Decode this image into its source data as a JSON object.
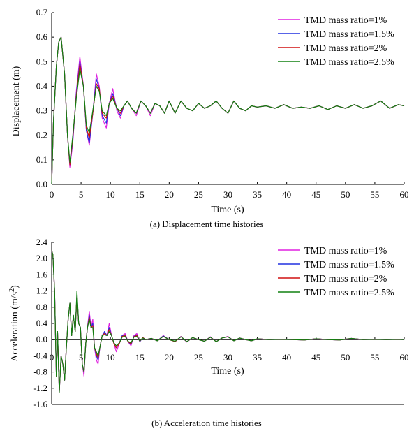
{
  "chart_data": [
    {
      "type": "line",
      "caption": "(a) Displacement time histories",
      "xlabel": "Time (s)",
      "ylabel": "Displacement (m)",
      "xlim": [
        0,
        60
      ],
      "ylim": [
        0,
        0.7
      ],
      "xticks": [
        "0",
        "5",
        "10",
        "15",
        "20",
        "25",
        "30",
        "35",
        "40",
        "45",
        "50",
        "55",
        "60"
      ],
      "yticks": [
        "0.0",
        "0.1",
        "0.2",
        "0.3",
        "0.4",
        "0.5",
        "0.6",
        "0.7"
      ],
      "legend_position": "top-right",
      "grid": false,
      "x": [
        0,
        0.3,
        0.8,
        1.2,
        1.6,
        2.2,
        2.7,
        3.1,
        3.6,
        4.2,
        4.8,
        5.4,
        5.9,
        6.4,
        7.0,
        7.6,
        8.1,
        8.6,
        9.3,
        9.8,
        10.4,
        11.1,
        11.7,
        12.3,
        12.9,
        13.6,
        14.4,
        15.2,
        16.0,
        16.8,
        17.6,
        18.4,
        19.2,
        20.0,
        21.0,
        22.0,
        23.0,
        24.0,
        25.0,
        26.0,
        27.0,
        28.0,
        29.0,
        30.0,
        31.0,
        32.0,
        33.0,
        34.0,
        35.0,
        36.5,
        38.0,
        39.5,
        41.0,
        42.5,
        44.0,
        45.5,
        47.0,
        48.5,
        50.0,
        51.5,
        53.0,
        54.5,
        56.0,
        57.5,
        59.0,
        60.0
      ],
      "series": [
        {
          "name": "TMD mass ratio=1%",
          "color": "#e020e0",
          "values": [
            0,
            0.25,
            0.48,
            0.58,
            0.6,
            0.45,
            0.2,
            0.07,
            0.17,
            0.38,
            0.52,
            0.4,
            0.22,
            0.16,
            0.29,
            0.45,
            0.4,
            0.27,
            0.23,
            0.33,
            0.39,
            0.3,
            0.27,
            0.32,
            0.34,
            0.31,
            0.28,
            0.34,
            0.32,
            0.28,
            0.33,
            0.32,
            0.29,
            0.34,
            0.29,
            0.34,
            0.31,
            0.3,
            0.33,
            0.31,
            0.32,
            0.34,
            0.31,
            0.29,
            0.34,
            0.31,
            0.3,
            0.32,
            0.315,
            0.32,
            0.31,
            0.325,
            0.31,
            0.315,
            0.31,
            0.32,
            0.305,
            0.32,
            0.31,
            0.325,
            0.31,
            0.32,
            0.34,
            0.31,
            0.325,
            0.32
          ]
        },
        {
          "name": "TMD mass ratio=1.5%",
          "color": "#2030e0",
          "values": [
            0,
            0.25,
            0.48,
            0.58,
            0.6,
            0.45,
            0.2,
            0.08,
            0.18,
            0.37,
            0.5,
            0.4,
            0.22,
            0.17,
            0.29,
            0.43,
            0.39,
            0.28,
            0.25,
            0.33,
            0.37,
            0.31,
            0.28,
            0.32,
            0.34,
            0.31,
            0.29,
            0.34,
            0.32,
            0.29,
            0.33,
            0.32,
            0.29,
            0.34,
            0.29,
            0.34,
            0.31,
            0.3,
            0.33,
            0.31,
            0.32,
            0.34,
            0.31,
            0.29,
            0.34,
            0.31,
            0.3,
            0.32,
            0.315,
            0.32,
            0.31,
            0.325,
            0.31,
            0.315,
            0.31,
            0.32,
            0.305,
            0.32,
            0.31,
            0.325,
            0.31,
            0.32,
            0.34,
            0.31,
            0.325,
            0.32
          ]
        },
        {
          "name": "TMD mass ratio=2%",
          "color": "#d01010",
          "values": [
            0,
            0.25,
            0.48,
            0.58,
            0.6,
            0.45,
            0.2,
            0.08,
            0.19,
            0.36,
            0.49,
            0.4,
            0.23,
            0.19,
            0.29,
            0.41,
            0.39,
            0.29,
            0.27,
            0.33,
            0.36,
            0.31,
            0.29,
            0.32,
            0.34,
            0.31,
            0.29,
            0.34,
            0.32,
            0.29,
            0.33,
            0.32,
            0.29,
            0.34,
            0.29,
            0.34,
            0.31,
            0.3,
            0.33,
            0.31,
            0.32,
            0.34,
            0.31,
            0.29,
            0.34,
            0.31,
            0.3,
            0.32,
            0.315,
            0.32,
            0.31,
            0.325,
            0.31,
            0.315,
            0.31,
            0.32,
            0.305,
            0.32,
            0.31,
            0.325,
            0.31,
            0.32,
            0.34,
            0.31,
            0.325,
            0.32
          ]
        },
        {
          "name": "TMD mass ratio=2.5%",
          "color": "#108010",
          "values": [
            0,
            0.25,
            0.48,
            0.58,
            0.6,
            0.45,
            0.2,
            0.09,
            0.2,
            0.35,
            0.47,
            0.4,
            0.24,
            0.21,
            0.3,
            0.4,
            0.38,
            0.3,
            0.28,
            0.33,
            0.35,
            0.31,
            0.3,
            0.32,
            0.34,
            0.31,
            0.29,
            0.34,
            0.32,
            0.29,
            0.33,
            0.32,
            0.29,
            0.34,
            0.29,
            0.34,
            0.31,
            0.3,
            0.33,
            0.31,
            0.32,
            0.34,
            0.31,
            0.29,
            0.34,
            0.31,
            0.3,
            0.32,
            0.315,
            0.32,
            0.31,
            0.325,
            0.31,
            0.315,
            0.31,
            0.32,
            0.305,
            0.32,
            0.31,
            0.325,
            0.31,
            0.32,
            0.34,
            0.31,
            0.325,
            0.32
          ]
        }
      ]
    },
    {
      "type": "line",
      "caption": "(b) Acceleration time histories",
      "xlabel": "Time (s)",
      "ylabel": "Acceleration (m/s",
      "ylabel_sup": "2",
      "ylabel_end": ")",
      "xlim": [
        0,
        60
      ],
      "ylim": [
        -1.6,
        2.4
      ],
      "xticks": [
        "0",
        "5",
        "10",
        "15",
        "20",
        "25",
        "30",
        "35",
        "40",
        "45",
        "50",
        "55",
        "60"
      ],
      "yticks": [
        "-1.6",
        "-1.2",
        "-0.8",
        "-0.4",
        "0.0",
        "0.4",
        "0.8",
        "1.2",
        "1.6",
        "2.0",
        "2.4"
      ],
      "legend_position": "top-right",
      "grid": false,
      "zero_line": true,
      "x": [
        0,
        0.2,
        0.5,
        0.8,
        1.0,
        1.3,
        1.6,
        1.9,
        2.2,
        2.5,
        2.8,
        3.1,
        3.4,
        3.7,
        4.0,
        4.3,
        4.6,
        4.9,
        5.2,
        5.5,
        5.8,
        6.1,
        6.4,
        6.7,
        7.0,
        7.3,
        7.6,
        7.9,
        8.2,
        8.6,
        9.0,
        9.4,
        9.8,
        10.2,
        10.6,
        11.0,
        11.5,
        12.0,
        12.5,
        13.0,
        13.5,
        14.0,
        14.5,
        15.0,
        15.5,
        16.0,
        17.0,
        18.0,
        19.0,
        20.0,
        21.0,
        22.0,
        23.0,
        24.0,
        25.0,
        26.0,
        27.0,
        28.0,
        29.0,
        30.0,
        31.0,
        32.0,
        33.0,
        34.0,
        35.0,
        37.0,
        39.0,
        41.0,
        43.0,
        45.0,
        47.0,
        49.0,
        51.0,
        53.0,
        55.0,
        57.0,
        59.0,
        60.0
      ],
      "series": [
        {
          "name": "TMD mass ratio=1%",
          "color": "#e020e0",
          "values": [
            2.2,
            2.1,
            1.2,
            -0.9,
            0.2,
            -1.3,
            -0.4,
            -0.6,
            -1.0,
            -0.2,
            0.5,
            0.9,
            0.1,
            0.6,
            0.2,
            1.1,
            0.4,
            0.3,
            -0.6,
            -0.9,
            -0.1,
            0.3,
            0.7,
            0.3,
            0.5,
            -0.2,
            -0.5,
            -0.6,
            -0.2,
            0.1,
            0.2,
            0.1,
            0.4,
            0.1,
            -0.1,
            -0.3,
            -0.1,
            0.1,
            0.15,
            -0.05,
            -0.15,
            0.1,
            0.15,
            -0.05,
            0.05,
            0.0,
            0.03,
            -0.03,
            0.1,
            0.0,
            -0.05,
            0.08,
            -0.06,
            0.05,
            0.0,
            -0.04,
            0.07,
            -0.05,
            0.04,
            0.08,
            -0.03,
            0.04,
            0.0,
            -0.03,
            0.02,
            0.0,
            0.01,
            0.0,
            -0.01,
            0.02,
            0.0,
            -0.01,
            0.03,
            0.0,
            0.01,
            0.0,
            0.01,
            0.0
          ]
        },
        {
          "name": "TMD mass ratio=1.5%",
          "color": "#2030e0",
          "values": [
            2.2,
            2.1,
            1.2,
            -0.9,
            0.2,
            -1.3,
            -0.4,
            -0.6,
            -1.0,
            -0.2,
            0.5,
            0.9,
            0.1,
            0.6,
            0.2,
            1.1,
            0.4,
            0.3,
            -0.6,
            -0.8,
            -0.1,
            0.3,
            0.6,
            0.3,
            0.4,
            -0.2,
            -0.4,
            -0.5,
            -0.2,
            0.1,
            0.2,
            0.1,
            0.3,
            0.1,
            -0.1,
            -0.2,
            -0.1,
            0.1,
            0.12,
            -0.05,
            -0.12,
            0.08,
            0.12,
            -0.05,
            0.05,
            0.0,
            0.03,
            -0.03,
            0.09,
            0.0,
            -0.05,
            0.07,
            -0.05,
            0.05,
            0.0,
            -0.04,
            0.06,
            -0.05,
            0.04,
            0.07,
            -0.03,
            0.04,
            0.0,
            -0.03,
            0.02,
            0.0,
            0.01,
            0.0,
            -0.01,
            0.02,
            0.0,
            -0.01,
            0.03,
            0.0,
            0.01,
            0.0,
            0.01,
            0.0
          ]
        },
        {
          "name": "TMD mass ratio=2%",
          "color": "#d01010",
          "values": [
            2.2,
            2.1,
            1.2,
            -0.9,
            0.2,
            -1.3,
            -0.4,
            -0.6,
            -1.0,
            -0.2,
            0.5,
            0.9,
            0.1,
            0.6,
            0.2,
            1.1,
            0.4,
            0.3,
            -0.6,
            -0.8,
            -0.1,
            0.3,
            0.55,
            0.3,
            0.35,
            -0.2,
            -0.35,
            -0.45,
            -0.2,
            0.1,
            0.15,
            0.1,
            0.25,
            0.1,
            -0.1,
            -0.2,
            -0.1,
            0.08,
            0.1,
            -0.05,
            -0.1,
            0.07,
            0.1,
            -0.04,
            0.05,
            0.0,
            0.03,
            -0.03,
            0.08,
            0.0,
            -0.05,
            0.07,
            -0.05,
            0.05,
            0.0,
            -0.04,
            0.06,
            -0.05,
            0.04,
            0.07,
            -0.03,
            0.04,
            0.0,
            -0.03,
            0.02,
            0.0,
            0.01,
            0.0,
            -0.01,
            0.02,
            0.0,
            -0.01,
            0.03,
            0.0,
            0.01,
            0.0,
            0.01,
            0.0
          ]
        },
        {
          "name": "TMD mass ratio=2.5%",
          "color": "#108010",
          "values": [
            2.2,
            2.1,
            1.2,
            -0.9,
            0.2,
            -1.3,
            -0.4,
            -0.6,
            -1.0,
            -0.2,
            0.5,
            0.9,
            0.1,
            0.6,
            0.2,
            1.2,
            0.4,
            0.3,
            -0.6,
            -0.8,
            -0.1,
            0.3,
            0.5,
            0.3,
            0.3,
            -0.2,
            -0.3,
            -0.4,
            -0.2,
            0.1,
            0.12,
            0.1,
            0.2,
            0.1,
            -0.08,
            -0.15,
            -0.08,
            0.06,
            0.08,
            -0.04,
            -0.08,
            0.06,
            0.08,
            -0.03,
            0.04,
            0.0,
            0.03,
            -0.03,
            0.08,
            0.0,
            -0.04,
            0.07,
            -0.05,
            0.05,
            0.0,
            -0.04,
            0.06,
            -0.05,
            0.04,
            0.07,
            -0.03,
            0.04,
            0.0,
            -0.03,
            0.02,
            0.0,
            0.01,
            0.0,
            -0.01,
            0.02,
            0.0,
            -0.01,
            0.03,
            0.0,
            0.01,
            0.0,
            0.01,
            0.0
          ]
        }
      ]
    }
  ]
}
